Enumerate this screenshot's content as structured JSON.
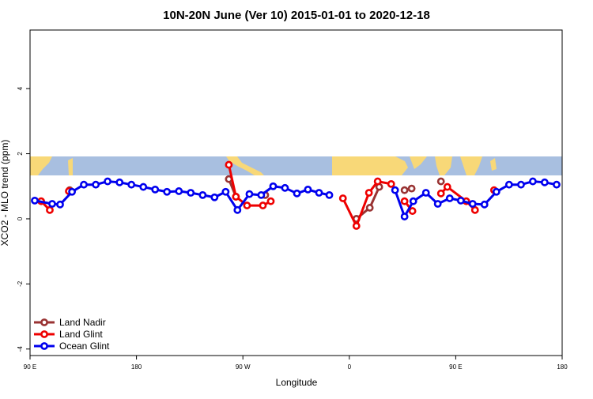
{
  "chart_data": {
    "type": "line",
    "title": "10N-20N June (Ver 10)   2015-01-01 to 2020-12-18",
    "x_label": "Longitude",
    "y_label": "XCO2 - MLO trend (ppm)",
    "xlim": [
      -270,
      180
    ],
    "ylim": [
      -4.2,
      5.8
    ],
    "xticks": [
      {
        "value": -270,
        "label": "90 E"
      },
      {
        "value": -180,
        "label": "180"
      },
      {
        "value": -90,
        "label": "90 W"
      },
      0,
      {
        "value": 90,
        "label": "90 E"
      },
      {
        "value": 180,
        "label": "180"
      }
    ],
    "yticks": [
      -4,
      -2,
      0,
      2,
      4
    ],
    "legend": "bottom-left",
    "series": [
      {
        "name": "Land Nadir",
        "color": "#993333",
        "x": [
          -236.5,
          null,
          -101.9,
          -95.9,
          null,
          -71.1,
          null,
          6.0,
          17.3,
          25.3,
          null,
          46.7,
          52.7,
          null,
          77.5
        ],
        "values": [
          0.88,
          null,
          1.22,
          0.68,
          null,
          0.73,
          null,
          0.0,
          0.34,
          0.98,
          null,
          0.88,
          0.93,
          null,
          1.15
        ]
      },
      {
        "name": "Land Glint",
        "color": "#ee0000",
        "x": [
          -260.6,
          -253.3,
          null,
          -237.2,
          null,
          -101.9,
          -95.9,
          -86.5,
          -73.1,
          -66.4,
          null,
          -5.4,
          6.0,
          16.6,
          24.0,
          35.4,
          null,
          46.7,
          53.4,
          null,
          77.5,
          82.9,
          98.9,
          106.3,
          null,
          122.4
        ],
        "values": [
          0.54,
          0.27,
          null,
          0.85,
          null,
          1.66,
          0.68,
          0.41,
          0.41,
          0.54,
          null,
          0.63,
          -0.22,
          0.8,
          1.15,
          1.07,
          null,
          0.54,
          0.24,
          null,
          0.78,
          0.98,
          0.54,
          0.27,
          null,
          0.88
        ]
      },
      {
        "name": "Ocean Glint",
        "color": "#0000ee",
        "x": [
          -266.0,
          -251.3,
          -244.6,
          -234.5,
          -224.5,
          -214.4,
          -204.4,
          -194.3,
          -184.3,
          -174.2,
          -164.2,
          -154.2,
          -144.1,
          -134.1,
          -124.0,
          -114.0,
          -104.6,
          -94.6,
          -84.5,
          -74.5,
          -64.4,
          -54.4,
          -44.3,
          -35.0,
          -25.6,
          -16.9,
          null,
          38.7,
          46.7,
          54.1,
          64.8,
          74.8,
          84.9,
          94.3,
          104.3,
          114.3,
          124.4,
          135.1,
          145.2,
          155.2,
          165.2,
          175.3
        ],
        "values": [
          0.56,
          0.46,
          0.44,
          0.83,
          1.05,
          1.05,
          1.15,
          1.12,
          1.05,
          0.98,
          0.9,
          0.83,
          0.85,
          0.8,
          0.73,
          0.66,
          0.83,
          0.27,
          0.76,
          0.73,
          1.0,
          0.95,
          0.78,
          0.9,
          0.8,
          0.73,
          null,
          0.88,
          0.07,
          0.54,
          0.8,
          0.46,
          0.63,
          0.56,
          0.46,
          0.44,
          0.83,
          1.05,
          1.05,
          1.15,
          1.12,
          1.05
        ]
      }
    ]
  }
}
